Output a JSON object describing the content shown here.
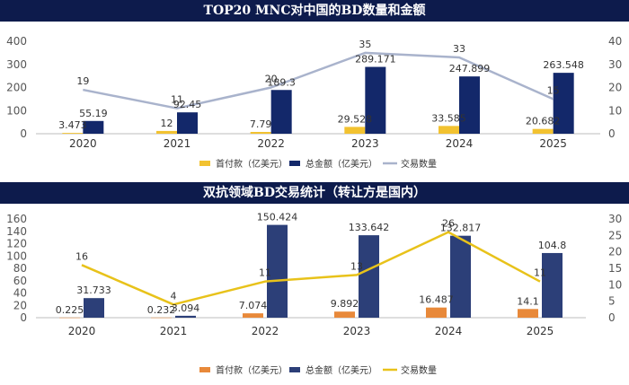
{
  "charts": {
    "top": {
      "title": "TOP20 MNC对中国的BD数量和金额"
    },
    "bottom": {
      "title": "双抗领域BD交易统计（转让方是国内）"
    }
  },
  "chart_data": [
    {
      "type": "bar",
      "title": "TOP20 MNC对中国的BD数量和金额",
      "categories": [
        "2020",
        "2021",
        "2022",
        "2023",
        "2024",
        "2025"
      ],
      "series": [
        {
          "name": "首付款（亿美元）",
          "kind": "bar",
          "axis": "left",
          "color": "#f2c230",
          "values": [
            3.473,
            12,
            7.79,
            29.528,
            33.585,
            20.682
          ],
          "labels": [
            "3.473",
            "12",
            "7.79",
            "29.528",
            "33.585",
            "20.682"
          ]
        },
        {
          "name": "总金额（亿美元）",
          "kind": "bar",
          "axis": "left",
          "color": "#13286a",
          "values": [
            55.19,
            92.45,
            189.3,
            289.171,
            247.899,
            263.548
          ],
          "labels": [
            "55.19",
            "92.45",
            "189.3",
            "289.171",
            "247.899",
            "263.548"
          ]
        },
        {
          "name": "交易数量",
          "kind": "line",
          "axis": "right",
          "color": "#a9b3cc",
          "values": [
            19,
            11,
            20,
            35,
            33,
            15
          ],
          "labels": [
            "19",
            "11",
            "20",
            "35",
            "33",
            "15"
          ]
        }
      ],
      "ylim": [
        0,
        400
      ],
      "yticks": [
        0,
        100,
        200,
        300,
        400
      ],
      "y2lim": [
        0,
        40
      ],
      "y2ticks": [
        0,
        10,
        20,
        30,
        40
      ],
      "grid": false,
      "legend": "bottom"
    },
    {
      "type": "bar",
      "title": "双抗领域BD交易统计（转让方是国内）",
      "categories": [
        "2020",
        "2021",
        "2022",
        "2023",
        "2024",
        "2025"
      ],
      "series": [
        {
          "name": "首付款（亿美元）",
          "kind": "bar",
          "axis": "left",
          "color": "#e8893a",
          "values": [
            0.225,
            0.232,
            7.074,
            9.892,
            16.487,
            14.1
          ],
          "labels": [
            "0.225",
            "0.232",
            "7.074",
            "9.892",
            "16.487",
            "14.1"
          ]
        },
        {
          "name": "总金额（亿美元）",
          "kind": "bar",
          "axis": "left",
          "color": "#2c3f78",
          "values": [
            31.733,
            3.094,
            150.424,
            133.642,
            132.817,
            104.8
          ],
          "labels": [
            "31.733",
            "3.094",
            "150.424",
            "133.642",
            "132.817",
            "104.8"
          ]
        },
        {
          "name": "交易数量",
          "kind": "line",
          "axis": "right",
          "color": "#e8c21a",
          "values": [
            16,
            4,
            11,
            13,
            26,
            11
          ],
          "labels": [
            "16",
            "4",
            "11",
            "13",
            "26",
            "11"
          ]
        }
      ],
      "ylim": [
        0,
        160
      ],
      "yticks": [
        0,
        20,
        40,
        60,
        80,
        100,
        120,
        140,
        160
      ],
      "y2lim": [
        0,
        30
      ],
      "y2ticks": [
        0,
        5,
        10,
        15,
        20,
        25,
        30
      ],
      "grid": false,
      "legend": "bottom"
    }
  ]
}
